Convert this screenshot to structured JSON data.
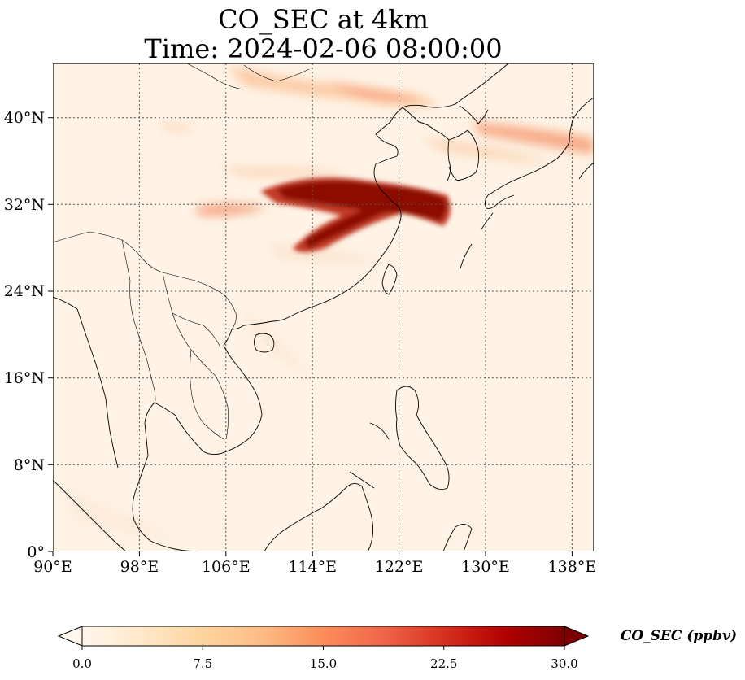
{
  "title_line1": "CO_SEC at 4km",
  "title_line2": "Time: 2024-02-06 08:00:00",
  "chart_data": {
    "type": "heatmap",
    "variable": "CO_SEC",
    "level": "4km",
    "time": "2024-02-06 08:00:00",
    "extent": {
      "lon": [
        90,
        140
      ],
      "lat": [
        0,
        45
      ]
    },
    "lon_ticks": [
      "90°E",
      "98°E",
      "106°E",
      "114°E",
      "122°E",
      "130°E",
      "138°E"
    ],
    "lon_values": [
      90,
      98,
      106,
      114,
      122,
      130,
      138
    ],
    "lat_ticks": [
      "0°",
      "8°N",
      "16°N",
      "24°N",
      "32°N",
      "40°N"
    ],
    "lat_values": [
      0,
      8,
      16,
      24,
      32,
      40
    ],
    "grid": "on, dotted",
    "colorbar": {
      "label": "CO_SEC (ppbv)",
      "min": 0.0,
      "max": 30.0,
      "ticks": [
        "0.0",
        "7.5",
        "15.0",
        "22.5",
        "30.0"
      ],
      "tick_values": [
        0,
        7.5,
        15,
        22.5,
        30
      ],
      "colormap": "OrRd",
      "extend": "both",
      "colors": [
        "#fff7ec",
        "#fee8c8",
        "#fdd49e",
        "#fdbb84",
        "#fc8d59",
        "#ef6548",
        "#d7301f",
        "#b30000",
        "#7f0000"
      ]
    },
    "features": [
      {
        "name": "main-plume",
        "lon_range": [
          111.5,
          127
        ],
        "lat_range": [
          27,
          34
        ],
        "value": 30
      },
      {
        "name": "north-band-inner-mongolia",
        "lon_range": [
          111,
          121
        ],
        "lat_range": [
          40,
          45
        ],
        "value": 10
      },
      {
        "name": "northeast-band",
        "lon_range": [
          119,
          140
        ],
        "lat_range": [
          36,
          41
        ],
        "value": 11
      },
      {
        "name": "west-secondary-band",
        "lon_range": [
          104,
          112
        ],
        "lat_range": [
          31,
          33
        ],
        "value": 12
      }
    ]
  }
}
